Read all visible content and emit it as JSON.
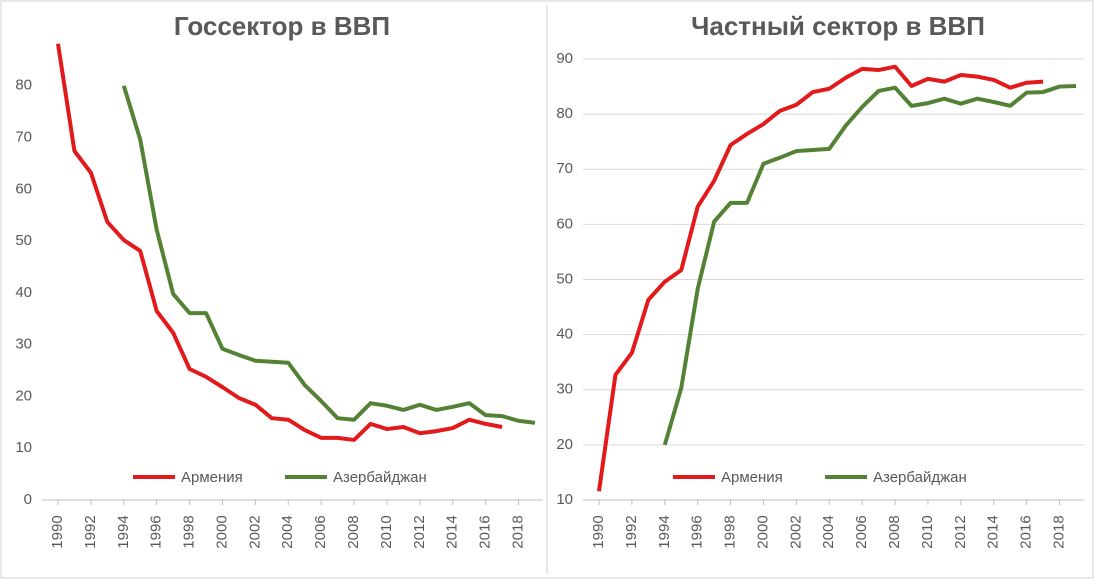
{
  "chart_data": [
    {
      "type": "line",
      "title": "Госсектор в ВВП",
      "x": [
        1990,
        1991,
        1992,
        1993,
        1994,
        1995,
        1996,
        1997,
        1998,
        1999,
        2000,
        2001,
        2002,
        2003,
        2004,
        2005,
        2006,
        2007,
        2008,
        2009,
        2010,
        2011,
        2012,
        2013,
        2014,
        2015,
        2016,
        2017,
        2018,
        2019
      ],
      "xlim": [
        1990,
        2019
      ],
      "xticks": [
        1990,
        1992,
        1994,
        1996,
        1998,
        2000,
        2002,
        2004,
        2006,
        2008,
        2010,
        2012,
        2014,
        2016,
        2018
      ],
      "ylim": [
        0,
        90
      ],
      "yticks": [
        0,
        10,
        20,
        30,
        40,
        50,
        60,
        70,
        80
      ],
      "grid": false,
      "series": [
        {
          "name": "Армения",
          "color": "#e31a1c",
          "values": [
            88.1,
            67.4,
            63.2,
            53.7,
            50.2,
            48.1,
            36.5,
            32.3,
            25.3,
            23.8,
            21.8,
            19.7,
            18.4,
            15.8,
            15.5,
            13.5,
            12.0,
            12.0,
            11.6,
            14.7,
            13.7,
            14.1,
            12.9,
            13.3,
            13.9,
            15.5,
            14.7,
            14.1,
            null,
            null
          ]
        },
        {
          "name": "Азербайджан",
          "color": "#548235",
          "values": [
            null,
            null,
            null,
            null,
            80.0,
            69.6,
            52.2,
            39.8,
            36.1,
            36.1,
            29.2,
            28.0,
            26.9,
            26.7,
            26.5,
            22.2,
            19.1,
            15.8,
            15.5,
            18.7,
            18.2,
            17.4,
            18.4,
            17.4,
            18.0,
            18.7,
            16.4,
            16.2,
            15.3,
            14.9
          ]
        }
      ]
    },
    {
      "type": "line",
      "title": "Частный сектор в ВВП",
      "x": [
        1990,
        1991,
        1992,
        1993,
        1994,
        1995,
        1996,
        1997,
        1998,
        1999,
        2000,
        2001,
        2002,
        2003,
        2004,
        2005,
        2006,
        2007,
        2008,
        2009,
        2010,
        2011,
        2012,
        2013,
        2014,
        2015,
        2016,
        2017,
        2018,
        2019
      ],
      "xlim": [
        1990,
        2019
      ],
      "xticks": [
        1990,
        1992,
        1994,
        1996,
        1998,
        2000,
        2002,
        2004,
        2006,
        2008,
        2010,
        2012,
        2014,
        2016,
        2018
      ],
      "ylim": [
        10,
        90
      ],
      "yticks": [
        10,
        20,
        30,
        40,
        50,
        60,
        70,
        80,
        90
      ],
      "grid": true,
      "series": [
        {
          "name": "Армения",
          "color": "#e31a1c",
          "values": [
            11.6,
            32.7,
            36.7,
            46.3,
            49.6,
            51.7,
            63.2,
            67.9,
            74.4,
            76.4,
            78.2,
            80.6,
            81.7,
            84.0,
            84.6,
            86.6,
            88.2,
            88.0,
            88.6,
            85.1,
            86.4,
            85.9,
            87.1,
            86.8,
            86.2,
            84.8,
            85.7,
            85.9,
            null,
            null
          ]
        },
        {
          "name": "Азербайджан",
          "color": "#548235",
          "values": [
            null,
            null,
            null,
            null,
            20.0,
            30.3,
            48.3,
            60.5,
            63.9,
            63.9,
            71.0,
            72.1,
            73.3,
            73.5,
            73.7,
            77.9,
            81.3,
            84.2,
            84.8,
            81.5,
            82.0,
            82.8,
            81.9,
            82.8,
            82.2,
            81.5,
            83.9,
            84.0,
            85.0,
            85.1
          ]
        }
      ]
    }
  ]
}
